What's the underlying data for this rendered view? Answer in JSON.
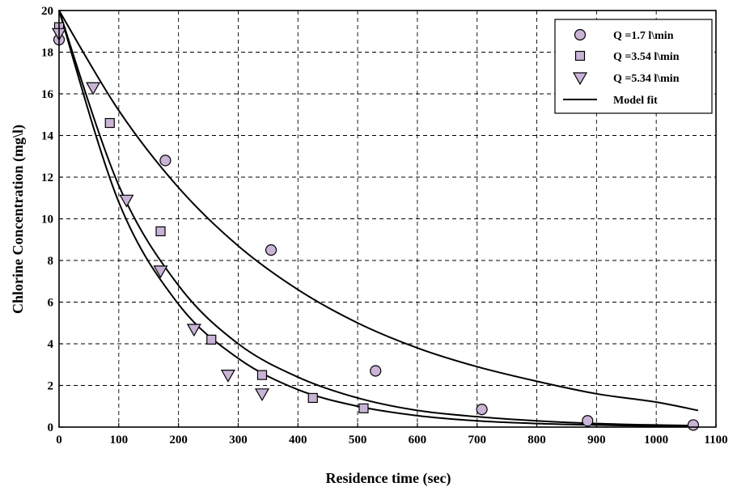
{
  "chart_data": {
    "type": "scatter",
    "xlabel": "Residence time (sec)",
    "ylabel": "Chlorine Concentration (mg\\l)",
    "xlim": [
      0,
      1100
    ],
    "ylim": [
      0,
      20
    ],
    "x_ticks": [
      "0",
      "100",
      "200",
      "300",
      "400",
      "500",
      "600",
      "700",
      "800",
      "900",
      "1000",
      "1100"
    ],
    "y_ticks": [
      "0",
      "2",
      "4",
      "6",
      "8",
      "10",
      "12",
      "14",
      "16",
      "18",
      "20"
    ],
    "grid": true,
    "legend_position": "top-right",
    "colors": {
      "marker_fill": "#c9b3d6",
      "line": "#000000"
    },
    "series": [
      {
        "name": "Q =1.7 l\\min",
        "marker": "circle",
        "points": [
          [
            0,
            18.6
          ],
          [
            178,
            12.8
          ],
          [
            355,
            8.5
          ],
          [
            530,
            2.7
          ],
          [
            708,
            0.85
          ],
          [
            885,
            0.3
          ],
          [
            1062,
            0.1
          ]
        ]
      },
      {
        "name": "Q =3.54 l\\min",
        "marker": "square",
        "points": [
          [
            0,
            19.2
          ],
          [
            85,
            14.6
          ],
          [
            170,
            9.4
          ],
          [
            255,
            4.2
          ],
          [
            340,
            2.5
          ],
          [
            425,
            1.4
          ],
          [
            510,
            0.9
          ]
        ]
      },
      {
        "name": "Q =5.34 l\\min",
        "marker": "triangle-down",
        "points": [
          [
            0,
            18.9
          ],
          [
            57,
            16.3
          ],
          [
            113,
            10.9
          ],
          [
            170,
            7.5
          ],
          [
            226,
            4.7
          ],
          [
            283,
            2.5
          ],
          [
            340,
            1.6
          ]
        ]
      }
    ],
    "fit_series": [
      {
        "name": "Model fit",
        "legend": true,
        "points": [
          [
            0,
            20
          ],
          [
            100,
            15.2
          ],
          [
            200,
            11.5
          ],
          [
            300,
            8.7
          ],
          [
            400,
            6.6
          ],
          [
            500,
            5.0
          ],
          [
            600,
            3.8
          ],
          [
            700,
            2.9
          ],
          [
            800,
            2.2
          ],
          [
            900,
            1.6
          ],
          [
            1000,
            1.2
          ],
          [
            1070,
            0.8
          ]
        ]
      },
      {
        "name": "Model fit",
        "legend": false,
        "points": [
          [
            0,
            20
          ],
          [
            100,
            11.6
          ],
          [
            200,
            6.8
          ],
          [
            300,
            4.0
          ],
          [
            400,
            2.4
          ],
          [
            500,
            1.4
          ],
          [
            600,
            0.8
          ],
          [
            700,
            0.5
          ],
          [
            800,
            0.3
          ],
          [
            900,
            0.17
          ],
          [
            1000,
            0.1
          ],
          [
            1070,
            0.07
          ]
        ]
      },
      {
        "name": "Model fit",
        "legend": false,
        "points": [
          [
            0,
            20
          ],
          [
            100,
            10.8
          ],
          [
            200,
            5.9
          ],
          [
            300,
            3.3
          ],
          [
            400,
            1.8
          ],
          [
            500,
            1.0
          ],
          [
            600,
            0.55
          ],
          [
            700,
            0.3
          ],
          [
            800,
            0.17
          ],
          [
            900,
            0.1
          ],
          [
            1000,
            0.05
          ],
          [
            1070,
            0.03
          ]
        ]
      }
    ]
  }
}
